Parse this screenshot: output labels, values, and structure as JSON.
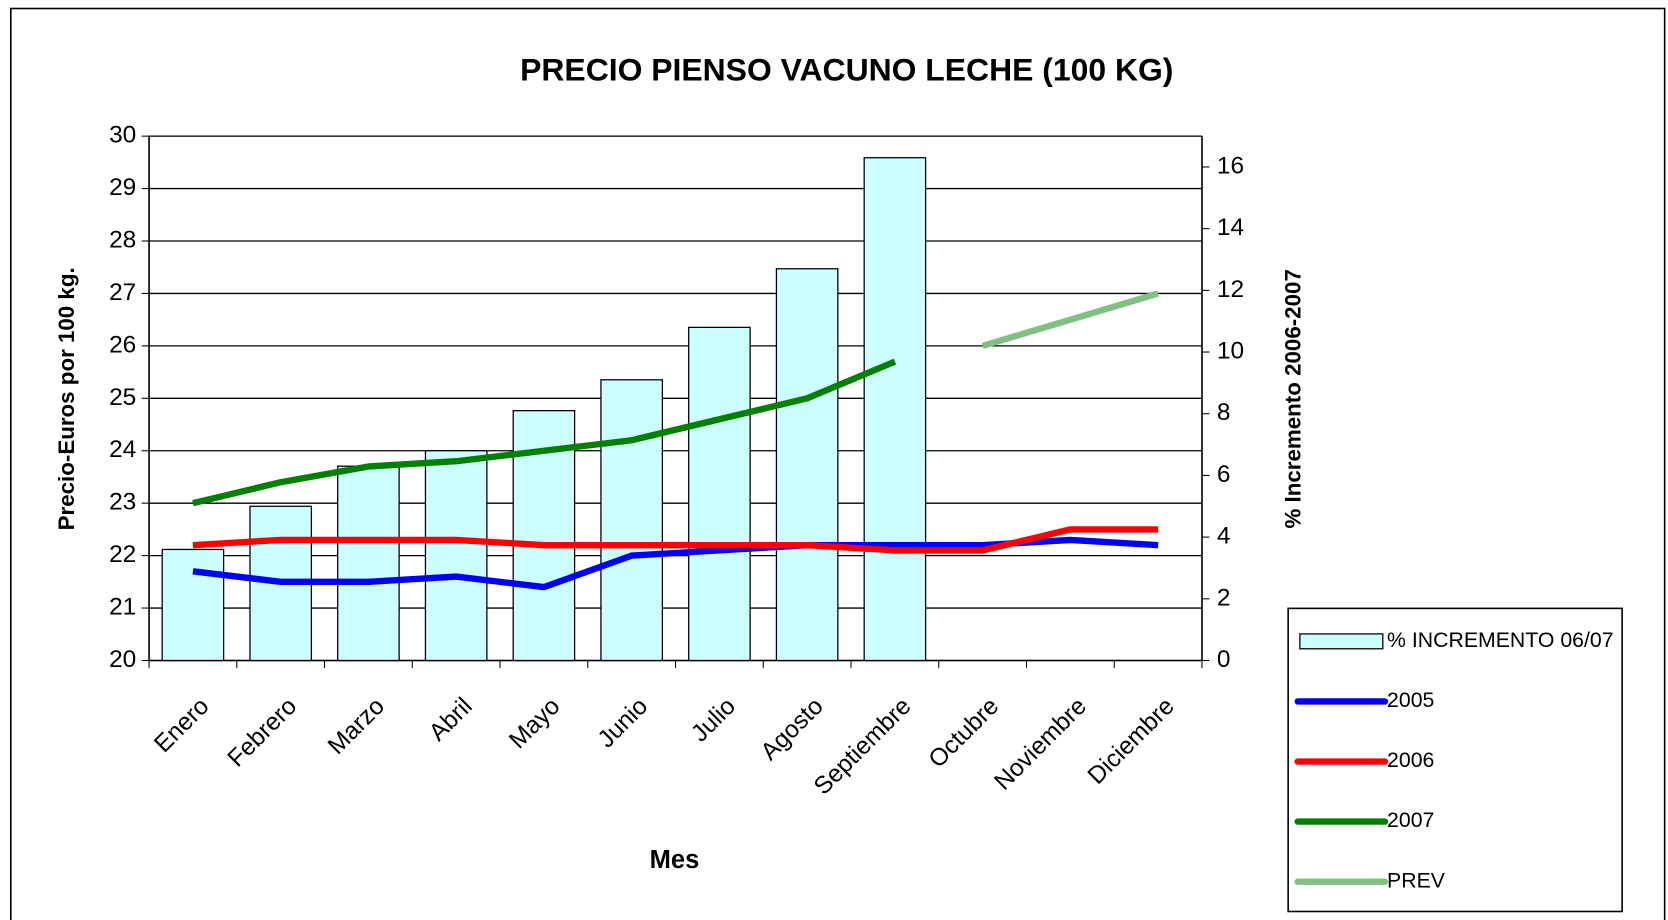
{
  "chart_data": {
    "type": "combo",
    "title": "PRECIO PIENSO VACUNO LECHE (100 KG)",
    "x_label": "Mes",
    "y_label": "Precio-Euros por 100 kg.",
    "y2_label": "% Incremento 2006-2007",
    "categories": [
      "Enero",
      "Febrero",
      "Marzo",
      "Abril",
      "Mayo",
      "Junio",
      "Julio",
      "Agosto",
      "Septiembre",
      "Octubre",
      "Noviembre",
      "Diciembre"
    ],
    "ylim": [
      20,
      30
    ],
    "yticks": [
      20,
      21,
      22,
      23,
      24,
      25,
      26,
      27,
      28,
      29,
      30
    ],
    "y2lim": [
      0,
      17
    ],
    "y2ticks": [
      0,
      2,
      4,
      6,
      8,
      10,
      12,
      14,
      16
    ],
    "grid": true,
    "legend": "right",
    "series": [
      {
        "name": "% INCREMENTO 06/07",
        "type": "bar",
        "axis": "y2",
        "color": "#ccffff",
        "values": [
          3.6,
          5.0,
          6.3,
          6.8,
          8.1,
          9.1,
          10.8,
          12.7,
          16.3,
          null,
          null,
          null
        ]
      },
      {
        "name": "2005",
        "type": "line",
        "color": "#0000ff",
        "values": [
          21.7,
          21.5,
          21.5,
          21.6,
          21.4,
          22.0,
          22.1,
          22.2,
          22.2,
          22.2,
          22.3,
          22.2
        ]
      },
      {
        "name": "2006",
        "type": "line",
        "color": "#ff0000",
        "values": [
          22.2,
          22.3,
          22.3,
          22.3,
          22.2,
          22.2,
          22.2,
          22.2,
          22.1,
          22.1,
          22.5,
          22.5
        ]
      },
      {
        "name": "2007",
        "type": "line",
        "color": "#008000",
        "values": [
          23.0,
          23.4,
          23.7,
          23.8,
          24.0,
          24.2,
          24.6,
          25.0,
          25.7,
          null,
          null,
          null
        ]
      },
      {
        "name": "PREV",
        "type": "line",
        "color": "#80c080",
        "values": [
          null,
          null,
          null,
          null,
          null,
          null,
          null,
          null,
          null,
          26.0,
          26.5,
          27.0
        ]
      }
    ]
  }
}
